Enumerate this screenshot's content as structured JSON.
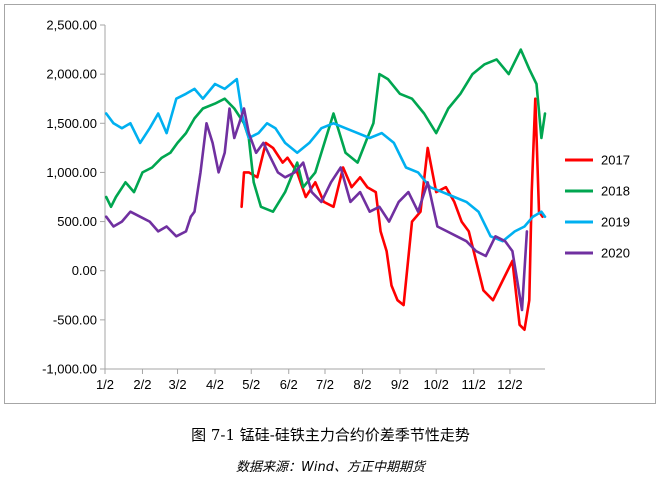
{
  "caption": "图 7-1 锰硅-硅铁主力合约价差季节性走势",
  "source": "数据来源：Wind、方正中期期货",
  "chart_data": {
    "type": "line",
    "title": "",
    "xlabel": "",
    "ylabel": "",
    "ylim": [
      -1000,
      2500
    ],
    "x_unit": "day of year",
    "xlim": [
      1,
      365
    ],
    "y_ticks": [
      -1000,
      -500,
      0,
      500,
      1000,
      1500,
      2000,
      2500
    ],
    "y_tick_labels": [
      "-1,000.00",
      "-500.00",
      "0.00",
      "500.00",
      "1,000.00",
      "1,500.00",
      "2,000.00",
      "2,500.00"
    ],
    "x_ticks": [
      1,
      32,
      61,
      92,
      122,
      153,
      183,
      214,
      245,
      275,
      306,
      336
    ],
    "x_tick_labels": [
      "1/2",
      "2/2",
      "3/2",
      "4/2",
      "5/2",
      "6/2",
      "7/2",
      "8/2",
      "9/2",
      "10/2",
      "11/2",
      "12/2"
    ],
    "grid": false,
    "legend_position": "right",
    "series": [
      {
        "name": "2017",
        "color": "#ff0000",
        "x": [
          114,
          116,
          120,
          127,
          134,
          140,
          148,
          152,
          160,
          167,
          175,
          182,
          190,
          198,
          205,
          212,
          218,
          225,
          229,
          234,
          238,
          243,
          248,
          255,
          262,
          268,
          275,
          283,
          290,
          296,
          302,
          308,
          314,
          322,
          330,
          338,
          344,
          348,
          352,
          354,
          357,
          360,
          363
        ],
        "y": [
          650,
          1000,
          1000,
          950,
          1300,
          1250,
          1100,
          1150,
          1000,
          750,
          900,
          700,
          650,
          1050,
          850,
          950,
          850,
          800,
          400,
          200,
          -150,
          -300,
          -350,
          500,
          600,
          1250,
          800,
          850,
          700,
          500,
          400,
          100,
          -200,
          -300,
          -100,
          100,
          -550,
          -600,
          -300,
          800,
          1750,
          600,
          550
        ]
      },
      {
        "name": "2018",
        "color": "#00a650",
        "x": [
          2,
          6,
          10,
          18,
          25,
          32,
          40,
          48,
          55,
          61,
          68,
          75,
          82,
          92,
          100,
          108,
          116,
          120,
          124,
          130,
          140,
          150,
          160,
          165,
          175,
          190,
          200,
          210,
          218,
          223,
          228,
          235,
          245,
          255,
          265,
          275,
          285,
          295,
          305,
          315,
          325,
          335,
          345,
          352,
          358,
          362,
          365
        ],
        "y": [
          750,
          650,
          750,
          900,
          800,
          1000,
          1050,
          1150,
          1200,
          1300,
          1400,
          1550,
          1650,
          1700,
          1750,
          1650,
          1500,
          1350,
          900,
          650,
          600,
          800,
          1100,
          850,
          1000,
          1600,
          1200,
          1100,
          1350,
          1500,
          2000,
          1950,
          1800,
          1750,
          1600,
          1400,
          1650,
          1800,
          2000,
          2100,
          2150,
          2000,
          2250,
          2050,
          1900,
          1350,
          1600
        ]
      },
      {
        "name": "2019",
        "color": "#00b0f0",
        "x": [
          2,
          8,
          15,
          22,
          30,
          38,
          45,
          52,
          60,
          68,
          75,
          82,
          92,
          100,
          110,
          115,
          120,
          128,
          135,
          142,
          150,
          160,
          170,
          180,
          190,
          200,
          210,
          220,
          230,
          240,
          250,
          260,
          270,
          280,
          290,
          300,
          310,
          320,
          330,
          340,
          348,
          355,
          362,
          365
        ],
        "y": [
          1600,
          1500,
          1450,
          1500,
          1300,
          1450,
          1600,
          1400,
          1750,
          1800,
          1850,
          1750,
          1900,
          1850,
          1950,
          1550,
          1350,
          1400,
          1500,
          1450,
          1300,
          1200,
          1300,
          1450,
          1500,
          1450,
          1400,
          1350,
          1400,
          1300,
          1050,
          1000,
          850,
          800,
          750,
          700,
          600,
          350,
          300,
          400,
          450,
          550,
          600,
          550
        ]
      },
      {
        "name": "2020",
        "color": "#7030a0",
        "x": [
          2,
          8,
          15,
          22,
          30,
          38,
          45,
          52,
          60,
          68,
          72,
          75,
          80,
          85,
          90,
          95,
          100,
          104,
          108,
          112,
          116,
          120,
          126,
          132,
          138,
          144,
          150,
          158,
          165,
          172,
          180,
          188,
          196,
          204,
          212,
          220,
          228,
          236,
          244,
          252,
          260,
          268,
          276,
          284,
          292,
          300,
          308,
          316,
          324,
          332,
          338,
          342,
          346,
          350
        ],
        "y": [
          550,
          450,
          500,
          600,
          550,
          500,
          400,
          450,
          350,
          400,
          550,
          600,
          1000,
          1500,
          1300,
          1000,
          1200,
          1650,
          1350,
          1500,
          1650,
          1400,
          1200,
          1300,
          1150,
          1000,
          950,
          1000,
          1100,
          800,
          700,
          900,
          1050,
          700,
          800,
          600,
          650,
          500,
          700,
          800,
          600,
          900,
          450,
          400,
          350,
          300,
          200,
          150,
          350,
          300,
          200,
          -100,
          -400,
          400
        ]
      }
    ]
  }
}
